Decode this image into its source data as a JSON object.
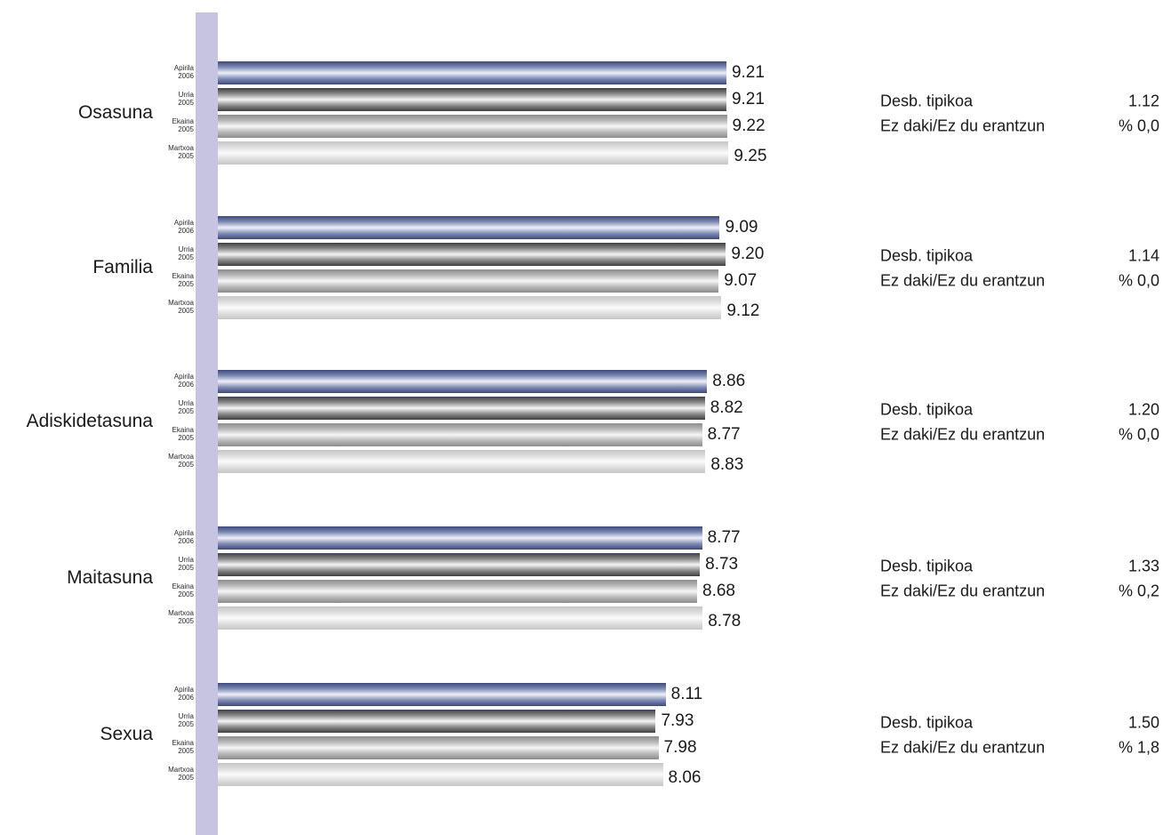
{
  "chart_data": {
    "type": "bar",
    "orientation": "horizontal",
    "categories": [
      "Osasuna",
      "Familia",
      "Adiskidetasuna",
      "Maitasuna",
      "Sexua"
    ],
    "series": [
      {
        "name": [
          "Apirila",
          "2006"
        ],
        "values": [
          9.21,
          9.09,
          8.86,
          8.77,
          8.11
        ]
      },
      {
        "name": [
          "Urria",
          "2005"
        ],
        "values": [
          9.21,
          9.2,
          8.82,
          8.73,
          7.93
        ]
      },
      {
        "name": [
          "Ekaina",
          "2005"
        ],
        "values": [
          9.22,
          9.07,
          8.77,
          8.68,
          7.98
        ]
      },
      {
        "name": [
          "Martxoa",
          "2005"
        ],
        "values": [
          9.25,
          9.12,
          8.83,
          8.78,
          8.06
        ]
      }
    ],
    "value_labels": [
      [
        "9.21",
        "9.09",
        "8.86",
        "8.77",
        "8.11"
      ],
      [
        "9.21",
        "9.20",
        "8.82",
        "8.73",
        "7.93"
      ],
      [
        "9.22",
        "9.07",
        "8.77",
        "8.68",
        "7.98"
      ],
      [
        "9.25",
        "9.12",
        "8.83",
        "8.78",
        "8.06"
      ]
    ],
    "xlim": [
      0,
      10
    ],
    "grid": false,
    "stats": [
      {
        "desb_label": "Desb. tipikoa",
        "desb_value": "1.12",
        "ezdaki_label": "Ez daki/Ez du erantzun",
        "ezdaki_value": "% 0,0"
      },
      {
        "desb_label": "Desb. tipikoa",
        "desb_value": "1.14",
        "ezdaki_label": "Ez daki/Ez du erantzun",
        "ezdaki_value": "% 0,0"
      },
      {
        "desb_label": "Desb. tipikoa",
        "desb_value": "1.20",
        "ezdaki_label": "Ez daki/Ez du erantzun",
        "ezdaki_value": "% 0,0"
      },
      {
        "desb_label": "Desb. tipikoa",
        "desb_value": "1.33",
        "ezdaki_label": "Ez daki/Ez du erantzun",
        "ezdaki_value": "% 0,2"
      },
      {
        "desb_label": "Desb. tipikoa",
        "desb_value": "1.50",
        "ezdaki_label": "Ez daki/Ez du erantzun",
        "ezdaki_value": "% 1,8"
      }
    ],
    "colors": {
      "axis_strip": "#c7c4e2",
      "series": [
        "#3d4a78",
        "#3f3f3f",
        "#8c8c8c",
        "#c6c6c6"
      ]
    }
  }
}
